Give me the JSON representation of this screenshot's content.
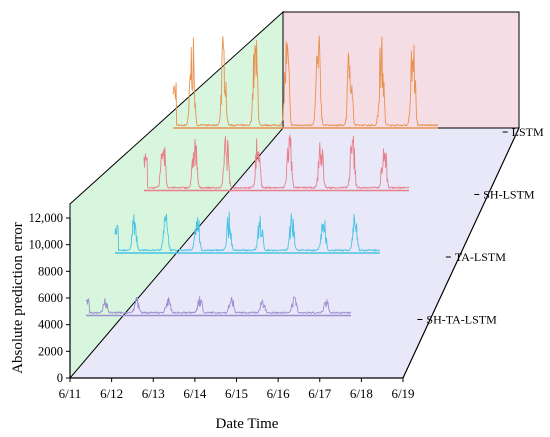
{
  "chart_data": {
    "type": "line",
    "title": "",
    "xlabel": "Date Time",
    "ylabel": "Absolute prediction error",
    "x_ticks": [
      "6/11",
      "6/12",
      "6/13",
      "6/14",
      "6/15",
      "6/16",
      "6/17",
      "6/18",
      "6/19"
    ],
    "y_ticks": [
      "0",
      "2000",
      "4000",
      "6000",
      "8000",
      "10,000",
      "12,000"
    ],
    "ylim": [
      0,
      12000
    ],
    "grid": false,
    "colors": {
      "back_wall": "#f5dde6",
      "side_wall": "#d8f5dd",
      "floor": "#e8e8f8"
    },
    "series": [
      {
        "name": "SH-TA-LSTM",
        "color": "#9b8fd0",
        "amplitude": 1400,
        "first_spike": 1400
      },
      {
        "name": "TA-LSTM",
        "color": "#49c4e6",
        "amplitude": 3200,
        "first_spike": 2100
      },
      {
        "name": "SH-LSTM",
        "color": "#e87f8a",
        "amplitude": 4700,
        "first_spike": 2800
      },
      {
        "name": "LSTM",
        "color": "#e8924f",
        "amplitude": 7800,
        "first_spike": 3500
      }
    ]
  }
}
